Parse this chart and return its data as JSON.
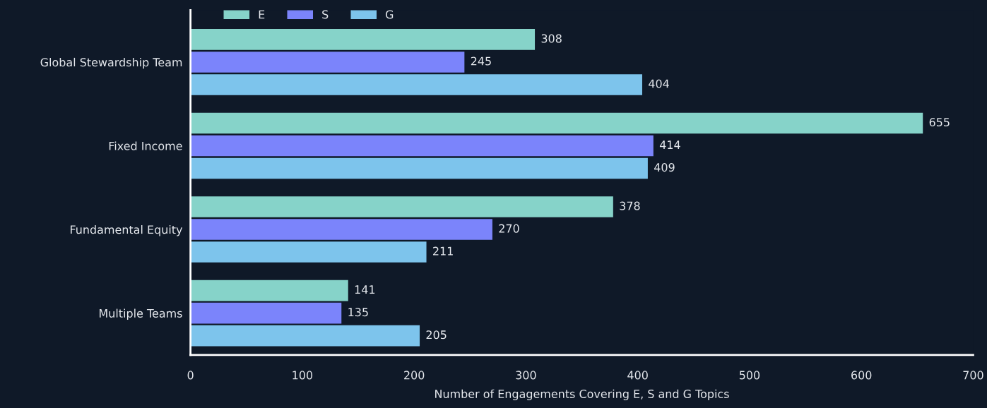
{
  "chart_data": {
    "type": "bar",
    "orientation": "horizontal",
    "xlabel": "Number of Engagements Covering E, S and G Topics",
    "categories": [
      "Global Stewardship Team",
      "Fixed Income",
      "Fundamental Equity",
      "Multiple Teams"
    ],
    "series": [
      {
        "name": "E",
        "color": "#86d3c9",
        "values": [
          308,
          655,
          378,
          141
        ]
      },
      {
        "name": "S",
        "color": "#7b84fb",
        "values": [
          245,
          414,
          270,
          135
        ]
      },
      {
        "name": "G",
        "color": "#7dc4ec",
        "values": [
          404,
          409,
          211,
          205
        ]
      }
    ],
    "xlim": [
      0,
      700
    ],
    "xticks": [
      0,
      100,
      200,
      300,
      400,
      500,
      600,
      700
    ],
    "data_labels": true,
    "legend": "top left",
    "grid": false
  }
}
